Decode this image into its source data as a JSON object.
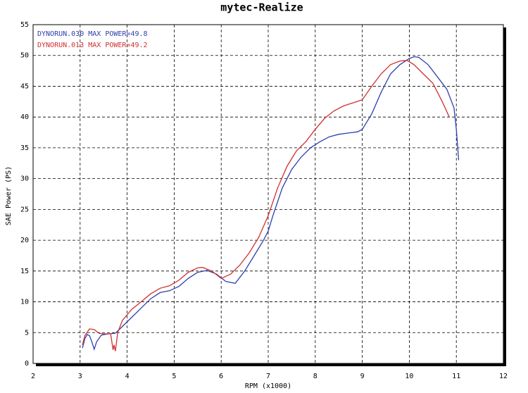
{
  "chart_data": {
    "type": "line",
    "title": "mytec-Realize",
    "x_label": "RPM (x1000)",
    "y_label": "SAE Power (PS)",
    "xlim": [
      2,
      12
    ],
    "xticks": [
      2,
      3,
      4,
      5,
      6,
      7,
      8,
      9,
      10,
      11,
      12
    ],
    "ylim": [
      0,
      55
    ],
    "yticks": [
      0,
      5,
      10,
      15,
      20,
      25,
      30,
      35,
      40,
      45,
      50,
      55
    ],
    "grid": true,
    "legend": "upper-left",
    "series": [
      {
        "name": "DYNORUN.030  MAX POWER=49.8",
        "color": "#2f3fae",
        "x": [
          3.05,
          3.1,
          3.15,
          3.2,
          3.25,
          3.3,
          3.35,
          3.45,
          3.6,
          3.75,
          3.9,
          4.1,
          4.3,
          4.5,
          4.7,
          4.9,
          5.1,
          5.3,
          5.5,
          5.7,
          5.9,
          6.1,
          6.3,
          6.5,
          6.7,
          6.9,
          7.0,
          7.1,
          7.3,
          7.5,
          7.7,
          7.9,
          8.1,
          8.3,
          8.5,
          8.7,
          8.9,
          9.0,
          9.2,
          9.4,
          9.6,
          9.8,
          10.0,
          10.1,
          10.2,
          10.4,
          10.6,
          10.8,
          10.95,
          11.0,
          11.05
        ],
        "values": [
          2.5,
          4.0,
          4.7,
          4.5,
          3.5,
          2.3,
          3.5,
          4.6,
          4.8,
          4.9,
          6.0,
          7.5,
          9.0,
          10.5,
          11.5,
          11.8,
          12.5,
          13.8,
          14.8,
          15.1,
          14.5,
          13.3,
          13.0,
          15.0,
          17.5,
          20.0,
          21.5,
          24.0,
          28.5,
          31.5,
          33.5,
          35.0,
          36.0,
          36.8,
          37.2,
          37.4,
          37.6,
          38.0,
          40.5,
          44.0,
          47.0,
          48.5,
          49.5,
          49.8,
          49.7,
          48.5,
          46.5,
          44.5,
          41.5,
          38.0,
          33.0
        ]
      },
      {
        "name": "DYNORUN.013  MAX POWER=49.2",
        "color": "#d03030",
        "x": [
          3.05,
          3.1,
          3.2,
          3.3,
          3.4,
          3.5,
          3.65,
          3.7,
          3.72,
          3.75,
          3.8,
          3.9,
          4.1,
          4.3,
          4.5,
          4.7,
          4.9,
          5.1,
          5.3,
          5.5,
          5.6,
          5.8,
          6.0,
          6.2,
          6.4,
          6.6,
          6.8,
          7.0,
          7.2,
          7.4,
          7.6,
          7.8,
          8.0,
          8.2,
          8.4,
          8.6,
          8.8,
          9.0,
          9.2,
          9.4,
          9.6,
          9.8,
          9.95,
          10.1,
          10.3,
          10.5,
          10.7,
          10.85
        ],
        "values": [
          3.0,
          4.5,
          5.6,
          5.5,
          4.9,
          4.8,
          4.8,
          2.2,
          3.0,
          2.0,
          5.0,
          7.0,
          8.8,
          10.0,
          11.3,
          12.2,
          12.6,
          13.5,
          14.8,
          15.5,
          15.6,
          15.0,
          13.8,
          14.5,
          16.0,
          18.0,
          20.5,
          24.0,
          28.5,
          32.0,
          34.5,
          36.0,
          38.0,
          39.8,
          41.0,
          41.8,
          42.3,
          42.8,
          45.0,
          47.0,
          48.5,
          49.1,
          49.2,
          48.5,
          47.0,
          45.5,
          42.5,
          40.0
        ]
      }
    ]
  }
}
